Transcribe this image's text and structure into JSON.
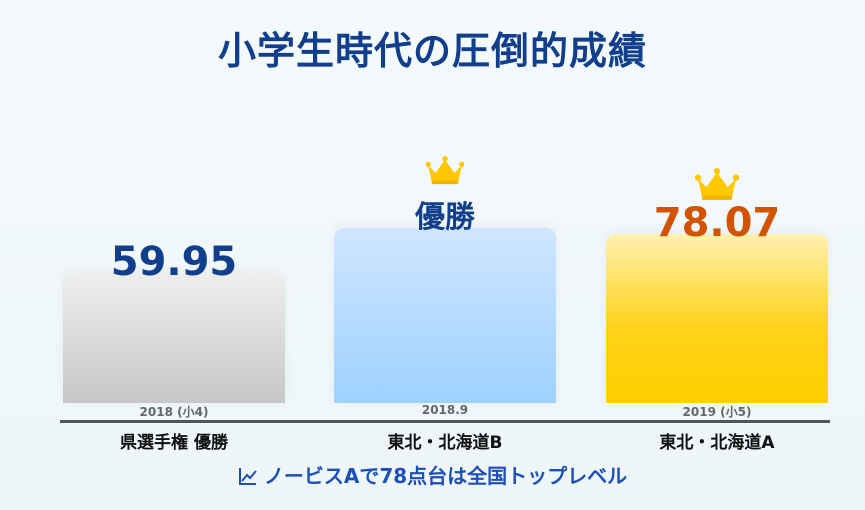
{
  "title": "小学生時代の圧倒的成績",
  "footer": {
    "text": "ノービスAで78点台は全国トップレベル",
    "icon": "line-chart-icon"
  },
  "colors": {
    "title": "#123f8c",
    "value_blue": "#123f8c",
    "value_orange": "#d35400",
    "crown": "#ffc800",
    "footer": "#1d4fb8"
  },
  "chart_data": {
    "type": "bar",
    "title": "小学生時代の圧倒的成績",
    "categories": [
      "県選手権 優勝",
      "東北・北海道B",
      "東北・北海道A"
    ],
    "dates": [
      "2018 (小4)",
      "2018.9",
      "2019 (小5)"
    ],
    "values": [
      59.95,
      null,
      78.07
    ],
    "labels": [
      "59.95",
      "優勝",
      "78.07"
    ],
    "crowns": [
      false,
      true,
      true
    ],
    "bar_colors": [
      "#d6d6d6",
      "#b5dbff",
      "#ffd21a"
    ],
    "label_colors": [
      "#123f8c",
      "#123f8c",
      "#d35400"
    ],
    "xlabel": "",
    "ylabel": "",
    "ylim": [
      0,
      100
    ],
    "grid": false
  }
}
